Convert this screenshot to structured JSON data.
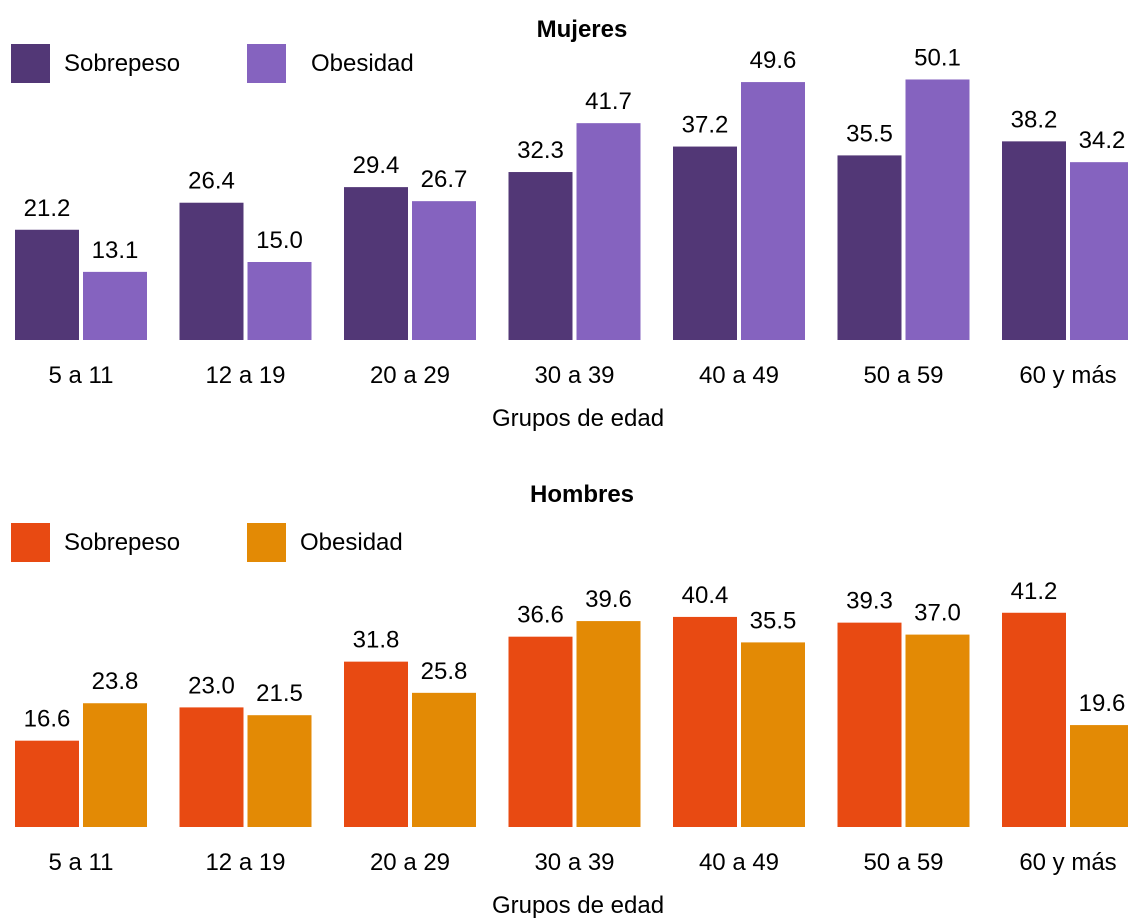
{
  "chart_data": [
    {
      "type": "bar",
      "title": "Mujeres",
      "xlabel": "Grupos de edad",
      "ylabel": "",
      "ylim": [
        0,
        52
      ],
      "grid": false,
      "legend": "top-left",
      "categories": [
        "5 a 11",
        "12 a 19",
        "20 a 29",
        "30 a 39",
        "40 a 49",
        "50 a 59",
        "60 y más"
      ],
      "series": [
        {
          "name": "Sobrepeso",
          "color": "#523776",
          "values": [
            21.2,
            26.4,
            29.4,
            32.3,
            37.2,
            35.5,
            38.2
          ],
          "labels": [
            "21.2",
            "26.4",
            "29.4",
            "32.3",
            "37.2",
            "35.5",
            "38.2"
          ]
        },
        {
          "name": "Obesidad",
          "color": "#8563BF",
          "values": [
            13.1,
            15.0,
            26.7,
            41.7,
            49.6,
            50.1,
            34.2
          ],
          "labels": [
            "13.1",
            "15.0",
            "26.7",
            "41.7",
            "49.6",
            "50.1",
            "34.2"
          ]
        }
      ]
    },
    {
      "type": "bar",
      "title": "Hombres",
      "xlabel": "Grupos de edad",
      "ylabel": "",
      "ylim": [
        0,
        52
      ],
      "grid": false,
      "legend": "top-left",
      "categories": [
        "5 a 11",
        "12 a 19",
        "20 a 29",
        "30 a 39",
        "40 a 49",
        "50 a 59",
        "60 y más"
      ],
      "series": [
        {
          "name": "Sobrepeso",
          "color": "#E84A12",
          "values": [
            16.6,
            23.0,
            31.8,
            36.6,
            40.4,
            39.3,
            41.2
          ],
          "labels": [
            "16.6",
            "23.0",
            "31.8",
            "36.6",
            "40.4",
            "39.3",
            "41.2"
          ]
        },
        {
          "name": "Obesidad",
          "color": "#E38A05",
          "values": [
            23.8,
            21.5,
            25.8,
            39.6,
            35.5,
            37.0,
            19.6
          ],
          "labels": [
            "23.8",
            "21.5",
            "25.8",
            "39.6",
            "35.5",
            "37.0",
            "19.6"
          ]
        }
      ]
    }
  ]
}
